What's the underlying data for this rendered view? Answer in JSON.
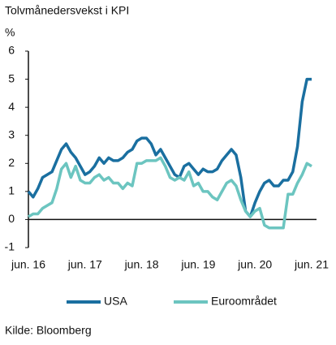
{
  "chart_data": {
    "type": "line",
    "title": "Tolvmånedersvekst i KPI",
    "y_label": "%",
    "source": "Kilde: Bloomberg",
    "categories": [
      "jun. 16",
      null,
      null,
      null,
      null,
      null,
      null,
      null,
      null,
      null,
      null,
      null,
      "jun. 17",
      null,
      null,
      null,
      null,
      null,
      null,
      null,
      null,
      null,
      null,
      null,
      "jun. 18",
      null,
      null,
      null,
      null,
      null,
      null,
      null,
      null,
      null,
      null,
      null,
      "jun. 19",
      null,
      null,
      null,
      null,
      null,
      null,
      null,
      null,
      null,
      null,
      null,
      "jun. 20",
      null,
      null,
      null,
      null,
      null,
      null,
      null,
      null,
      null,
      null,
      null,
      "jun. 21"
    ],
    "series": [
      {
        "name": "USA",
        "color": "#1a6fa0",
        "values": [
          1.0,
          0.8,
          1.1,
          1.5,
          1.6,
          1.7,
          2.1,
          2.5,
          2.7,
          2.4,
          2.2,
          1.9,
          1.6,
          1.7,
          1.9,
          2.2,
          2.0,
          2.2,
          2.1,
          2.1,
          2.2,
          2.4,
          2.5,
          2.8,
          2.9,
          2.9,
          2.7,
          2.3,
          2.5,
          2.2,
          1.9,
          1.6,
          1.5,
          1.9,
          2.0,
          1.8,
          1.6,
          1.8,
          1.7,
          1.7,
          1.8,
          2.1,
          2.3,
          2.5,
          2.3,
          1.5,
          0.3,
          0.1,
          0.6,
          1.0,
          1.3,
          1.4,
          1.2,
          1.2,
          1.4,
          1.4,
          1.7,
          2.6,
          4.2,
          5.0,
          5.0
        ]
      },
      {
        "name": "Euroområdet",
        "color": "#6cc5c0",
        "values": [
          0.1,
          0.2,
          0.2,
          0.4,
          0.5,
          0.6,
          1.1,
          1.8,
          2.0,
          1.5,
          1.9,
          1.4,
          1.3,
          1.3,
          1.5,
          1.6,
          1.4,
          1.5,
          1.3,
          1.3,
          1.1,
          1.3,
          1.2,
          2.0,
          2.0,
          2.1,
          2.1,
          2.1,
          2.2,
          1.9,
          1.5,
          1.4,
          1.5,
          1.4,
          1.7,
          1.2,
          1.3,
          1.0,
          1.0,
          0.8,
          0.7,
          1.0,
          1.3,
          1.4,
          1.2,
          0.7,
          0.3,
          0.1,
          0.3,
          0.4,
          -0.2,
          -0.3,
          -0.3,
          -0.3,
          -0.3,
          0.9,
          0.9,
          1.3,
          1.6,
          2.0,
          1.9
        ]
      }
    ],
    "ylim": [
      -1,
      6
    ],
    "yticks": [
      -1,
      0,
      1,
      2,
      3,
      4,
      5,
      6
    ]
  }
}
